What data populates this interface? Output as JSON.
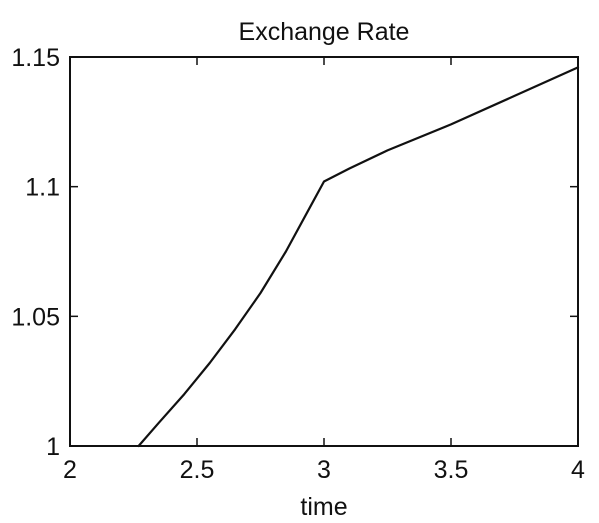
{
  "chart_data": {
    "type": "line",
    "title": "Exchange Rate",
    "xlabel": "time",
    "ylabel": "",
    "xlim": [
      2,
      4
    ],
    "ylim": [
      1,
      1.15
    ],
    "x_ticks": [
      2,
      2.5,
      3,
      3.5,
      4
    ],
    "x_tick_labels": [
      "2",
      "2.5",
      "3",
      "3.5",
      "4"
    ],
    "y_ticks": [
      1,
      1.05,
      1.1,
      1.15
    ],
    "y_tick_labels": [
      "1",
      "1.05",
      "1.1",
      "1.15"
    ],
    "grid": false,
    "series": [
      {
        "color": "#111111",
        "x": [
          2.27,
          2.35,
          2.45,
          2.55,
          2.65,
          2.75,
          2.85,
          2.95,
          3.0,
          3.1,
          3.25,
          3.5,
          3.75,
          4.0
        ],
        "y": [
          1.0,
          1.009,
          1.02,
          1.032,
          1.045,
          1.059,
          1.075,
          1.093,
          1.102,
          1.107,
          1.114,
          1.124,
          1.135,
          1.146
        ]
      }
    ]
  }
}
